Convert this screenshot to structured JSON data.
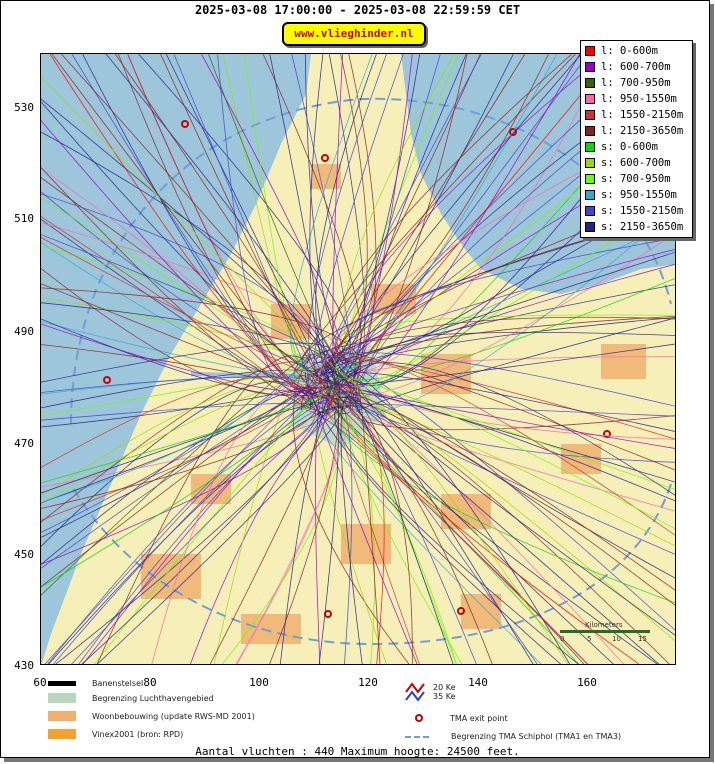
{
  "header": {
    "title": "2025-03-08 17:00:00 - 2025-03-08 22:59:59 CET",
    "site": "www.vlieghinder.nl"
  },
  "axes": {
    "y_ticks": [
      "530",
      "510",
      "490",
      "470",
      "450",
      "430"
    ],
    "x_ticks": [
      "60",
      "80",
      "100",
      "120",
      "140",
      "160"
    ]
  },
  "legend": {
    "items": [
      {
        "label": "l: 0-600m",
        "color": "#ff0000"
      },
      {
        "label": "l: 600-700m",
        "color": "#9900cc"
      },
      {
        "label": "l: 700-950m",
        "color": "#336600"
      },
      {
        "label": "l: 950-1550m",
        "color": "#ff66aa"
      },
      {
        "label": "l: 1550-2150m",
        "color": "#cc3333"
      },
      {
        "label": "l: 2150-3650m",
        "color": "#882222"
      },
      {
        "label": "s: 0-600m",
        "color": "#00dd00"
      },
      {
        "label": "s: 600-700m",
        "color": "#99dd00"
      },
      {
        "label": "s: 700-950m",
        "color": "#66ff00"
      },
      {
        "label": "s: 950-1550m",
        "color": "#33aacc"
      },
      {
        "label": "s: 1550-2150m",
        "color": "#4444cc"
      },
      {
        "label": "s: 2150-3650m",
        "color": "#222288"
      }
    ]
  },
  "scale": {
    "title": "Kilometers",
    "ticks": [
      "0",
      "5",
      "10",
      "15"
    ]
  },
  "footer": {
    "runways": "Banenstelsel",
    "airport_boundary": "Begrenzing Luchthavengebied",
    "housing": "Woonbebouwing (update RWS-MD 2001)",
    "vinex": "Vinex2001 (bron: RPD)",
    "noise_20": "20 Ke",
    "noise_35": "35 Ke",
    "tma_exit": "TMA exit point",
    "tma_boundary": "Begrenzing TMA Schiphol  (TMA1 en TMA3)",
    "colors": {
      "runways": "#000000",
      "airport_boundary": "#b7d7c0",
      "housing": "#f0b070",
      "vinex": "#f2a030"
    }
  },
  "summary": {
    "text": "Aantal vluchten : 440 Maximum hoogte: 24500 feet."
  }
}
